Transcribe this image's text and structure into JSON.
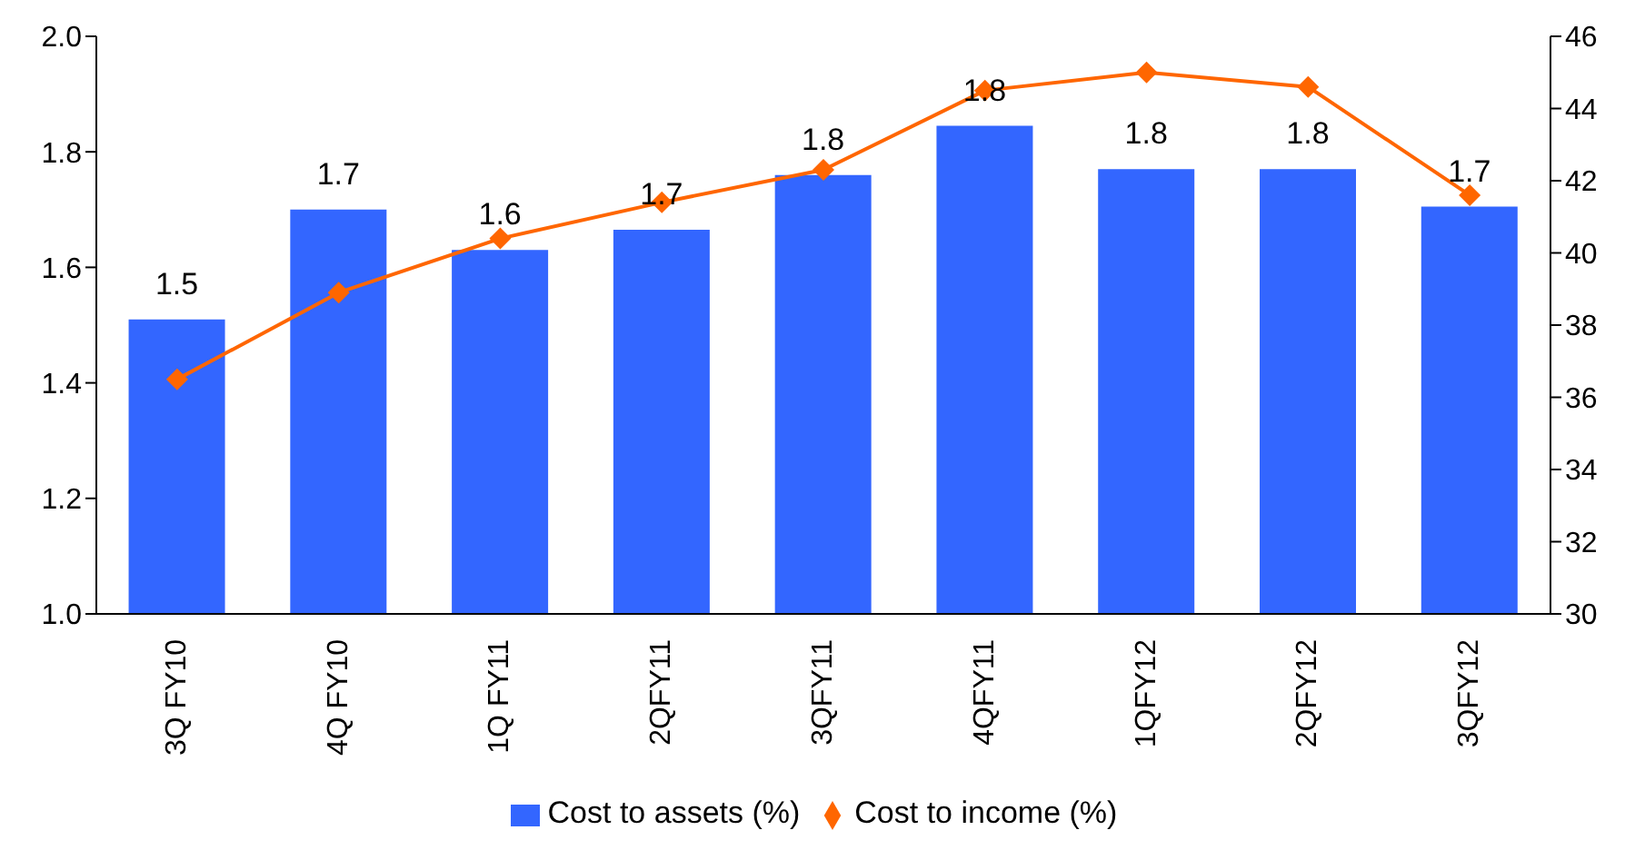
{
  "chart_data": {
    "type": "bar",
    "categories": [
      "3Q FY10",
      "4Q FY10",
      "1Q FY11",
      "2QFY11",
      "3QFY11",
      "4QFY11",
      "1QFY12",
      "2QFY12",
      "3QFY12"
    ],
    "series": [
      {
        "name": "Cost to assets (%)",
        "color": "#3366ff",
        "values": [
          1.51,
          1.7,
          1.63,
          1.665,
          1.76,
          1.845,
          1.77,
          1.77,
          1.705
        ],
        "value_labels": [
          "1.5",
          "1.7",
          "1.6",
          "1.7",
          "1.8",
          "1.8",
          "1.8",
          "1.8",
          "1.7"
        ]
      },
      {
        "name": "Cost to income (%)",
        "type": "line",
        "axis": "y2",
        "color": "#ff6600",
        "marker": "diamond",
        "values": [
          36.5,
          38.9,
          40.4,
          41.4,
          42.3,
          44.5,
          45.0,
          44.6,
          41.6
        ]
      }
    ],
    "ylim": [
      1.0,
      2.0
    ],
    "yticks": [
      {
        "value": 1,
        "label": "1.0"
      },
      1.2,
      1.4,
      1.6,
      1.8,
      {
        "value": 2,
        "label": "2.0"
      }
    ],
    "y2lim": [
      30,
      46
    ],
    "y2ticks": [
      30,
      32,
      34,
      36,
      38,
      40,
      42,
      44,
      46
    ],
    "legend": "bottom"
  }
}
